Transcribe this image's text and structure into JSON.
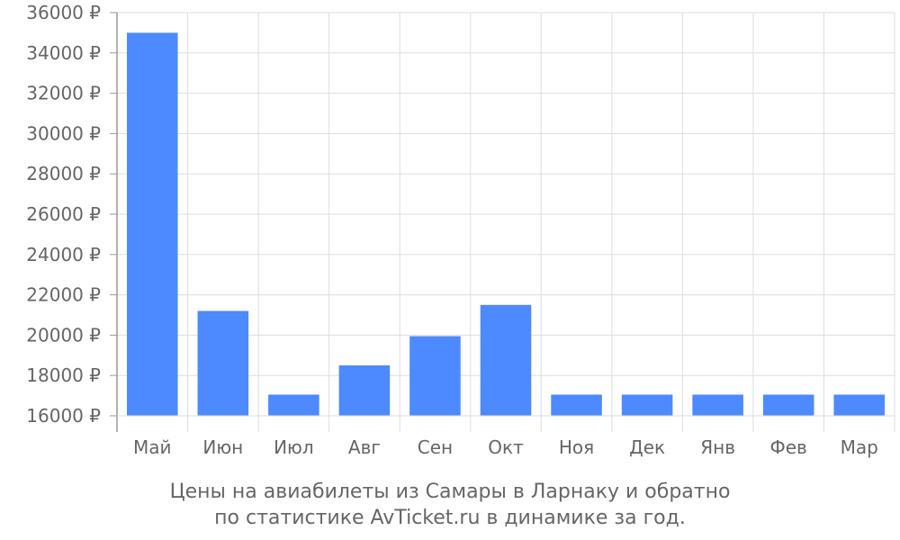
{
  "chart_data": {
    "type": "bar",
    "categories": [
      "Май",
      "Июн",
      "Июл",
      "Авг",
      "Сен",
      "Окт",
      "Ноя",
      "Дек",
      "Янв",
      "Фев",
      "Мар"
    ],
    "values": [
      35000,
      21200,
      17050,
      18500,
      19950,
      21500,
      17050,
      17050,
      17050,
      17050,
      17050
    ],
    "ylim": [
      16000,
      36000
    ],
    "yticks": [
      16000,
      18000,
      20000,
      22000,
      24000,
      26000,
      28000,
      30000,
      32000,
      34000,
      36000
    ],
    "ytick_labels": [
      "16000 ₽",
      "18000 ₽",
      "20000 ₽",
      "22000 ₽",
      "24000 ₽",
      "26000 ₽",
      "28000 ₽",
      "30000 ₽",
      "32000 ₽",
      "34000 ₽",
      "36000 ₽"
    ],
    "grid": true,
    "bar_color": "#4d8aff",
    "grid_color": "#dddddd",
    "axis_color": "#999999"
  },
  "caption": {
    "line1": "Цены на авиабилеты из Самары в Ларнаку и обратно",
    "line2": "по статистике AvTicket.ru в динамике за год."
  }
}
